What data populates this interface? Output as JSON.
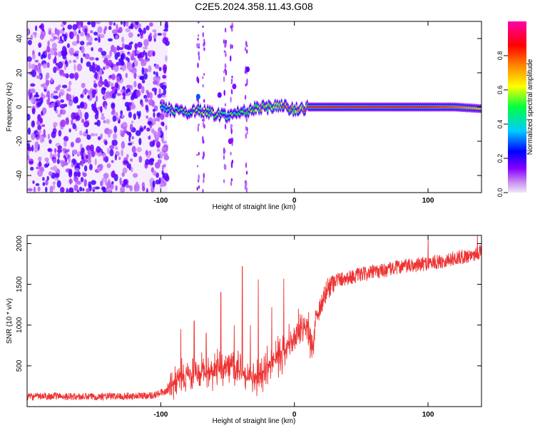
{
  "title": "C2E5.2024.358.11.43.G08",
  "chart_data": [
    {
      "type": "heatmap",
      "xlabel": "Height of straight line (km)",
      "ylabel": "Frequency (Hz)",
      "xlim": [
        -200,
        140
      ],
      "ylim": [
        -50,
        50
      ],
      "x_ticks": [
        -100,
        0,
        100
      ],
      "x_tick_labels": [
        "-100",
        "0",
        "100"
      ],
      "y_ticks": [
        40,
        20,
        0,
        -20,
        -40
      ],
      "y_tick_labels": [
        "40",
        "20",
        "0",
        "-20",
        "-40"
      ],
      "grid": false,
      "colorbar": {
        "label": "Normalized spectral amplitude",
        "range": [
          0,
          1
        ],
        "ticks": [
          0.0,
          0.2,
          0.4,
          0.6,
          0.8
        ],
        "tick_labels": [
          "0.0",
          "0.2",
          "0.4",
          "0.6",
          "0.8"
        ],
        "colors": [
          "#e8c8f8",
          "#8800ff",
          "#0000ff",
          "#00ccff",
          "#00ff00",
          "#ffff00",
          "#ff8800",
          "#ff0000",
          "#ff00aa"
        ]
      },
      "noise_region_x": [
        -200,
        -95
      ],
      "carrier_track": [
        {
          "x": -100,
          "f": 0,
          "amp": 0.6
        },
        {
          "x": -90,
          "f": -2,
          "amp": 0.55
        },
        {
          "x": -80,
          "f": -3,
          "amp": 0.55
        },
        {
          "x": -70,
          "f": -2,
          "amp": 0.6
        },
        {
          "x": -60,
          "f": -4,
          "amp": 0.6
        },
        {
          "x": -50,
          "f": -5,
          "amp": 0.55
        },
        {
          "x": -40,
          "f": -3,
          "amp": 0.6
        },
        {
          "x": -30,
          "f": -1,
          "amp": 0.65
        },
        {
          "x": -20,
          "f": 0,
          "amp": 0.75
        },
        {
          "x": -10,
          "f": 1,
          "amp": 0.8
        },
        {
          "x": 0,
          "f": -2,
          "amp": 0.8
        },
        {
          "x": 10,
          "f": 0,
          "amp": 0.85
        },
        {
          "x": 20,
          "f": 0,
          "amp": 0.85
        },
        {
          "x": 40,
          "f": 0,
          "amp": 0.85
        },
        {
          "x": 60,
          "f": 0,
          "amp": 0.85
        },
        {
          "x": 80,
          "f": 0,
          "amp": 0.85
        },
        {
          "x": 100,
          "f": 0,
          "amp": 0.85
        },
        {
          "x": 120,
          "f": 0,
          "amp": 0.8
        },
        {
          "x": 140,
          "f": -1,
          "amp": 0.7
        }
      ]
    },
    {
      "type": "line",
      "xlabel": "Height of straight line (km)",
      "ylabel": "SNR (10 * v/v)",
      "xlim": [
        -200,
        140
      ],
      "ylim": [
        0,
        2100
      ],
      "x_ticks": [
        -100,
        0,
        100
      ],
      "x_tick_labels": [
        "-100",
        "0",
        "100"
      ],
      "y_ticks": [
        500,
        1000,
        1500,
        2000
      ],
      "y_tick_labels": [
        "500",
        "1000",
        "1500",
        "2000"
      ],
      "grid": false,
      "color": "#ee3333",
      "x": [
        -200,
        -180,
        -160,
        -140,
        -120,
        -105,
        -95,
        -88,
        -80,
        -70,
        -60,
        -50,
        -40,
        -30,
        -20,
        -10,
        0,
        10,
        13,
        16,
        20,
        25,
        30,
        40,
        50,
        60,
        70,
        80,
        90,
        100,
        110,
        120,
        130,
        140
      ],
      "y": [
        120,
        130,
        120,
        125,
        130,
        140,
        200,
        330,
        380,
        420,
        450,
        500,
        420,
        300,
        500,
        650,
        850,
        1000,
        600,
        1100,
        1250,
        1450,
        1550,
        1580,
        1620,
        1650,
        1680,
        1720,
        1730,
        1760,
        1780,
        1820,
        1850,
        1900
      ],
      "spikes": [
        {
          "x": -85,
          "y": 950
        },
        {
          "x": -75,
          "y": 1050
        },
        {
          "x": -66,
          "y": 900
        },
        {
          "x": -55,
          "y": 1400
        },
        {
          "x": -45,
          "y": 1000
        },
        {
          "x": -39,
          "y": 1720
        },
        {
          "x": -33,
          "y": 1000
        },
        {
          "x": -27,
          "y": 1560
        },
        {
          "x": -17,
          "y": 1220
        },
        {
          "x": -8,
          "y": 1570
        },
        {
          "x": 3,
          "y": 1200
        },
        {
          "x": 100,
          "y": 2080
        },
        {
          "x": 137,
          "y": 2150
        }
      ]
    }
  ]
}
